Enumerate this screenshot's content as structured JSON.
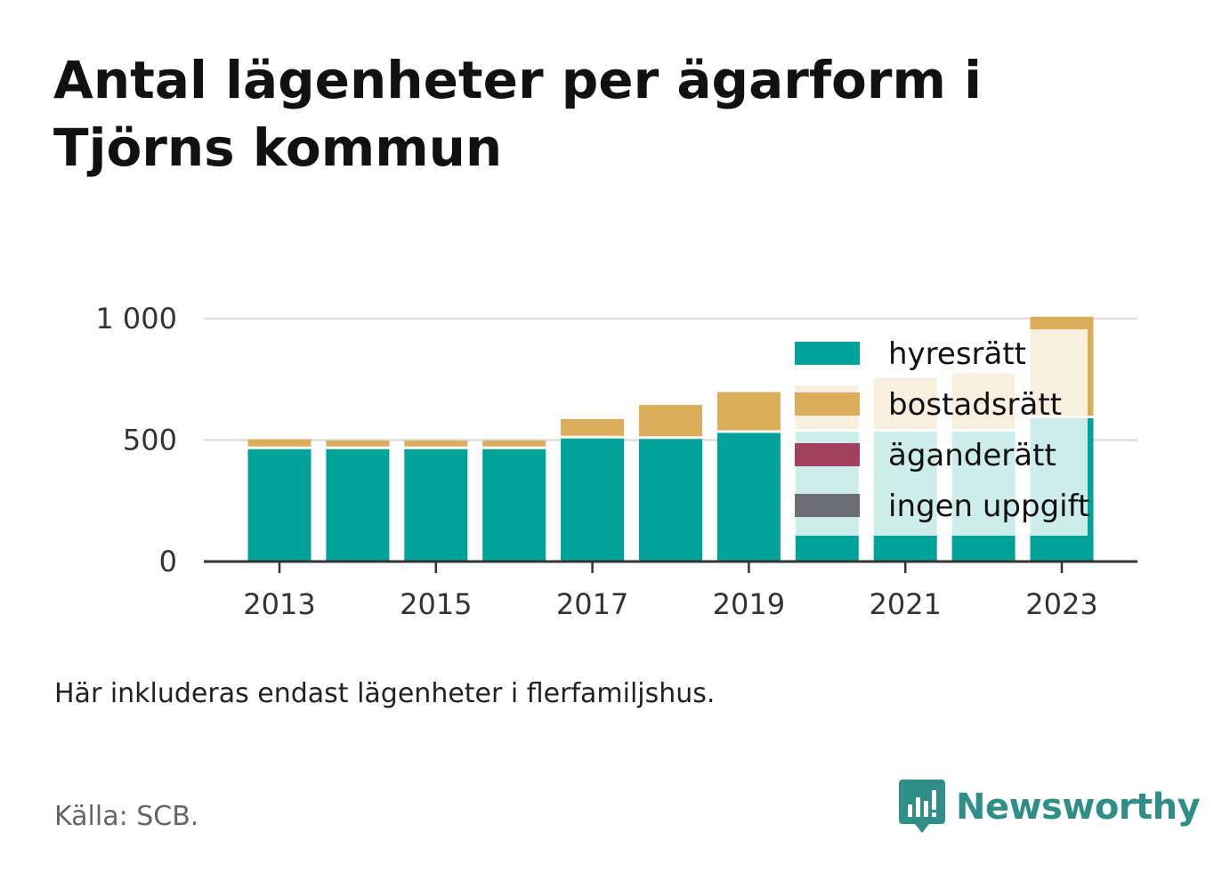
{
  "title": "Antal lägenheter per ägarform i Tjörns kommun",
  "note": "Här inkluderas endast lägenheter i flerfamiljshus.",
  "source": "Källa: SCB.",
  "brand": {
    "name": "Newsworthy",
    "icon": "newsworthy-logo-icon"
  },
  "colors": {
    "hyresratt": "#00a398",
    "bostadsratt": "#d9ad5a",
    "aganderatt": "#a3405e",
    "ingen_uppgift": "#6d6e73",
    "grid": "#dddddd",
    "axis": "#333333",
    "brand": "#2f8f87"
  },
  "chart_data": {
    "type": "bar",
    "stacked": true,
    "categories": [
      "2013",
      "2014",
      "2015",
      "2016",
      "2017",
      "2018",
      "2019",
      "2020",
      "2021",
      "2022",
      "2023"
    ],
    "x_tick_labels": [
      "2013",
      "2015",
      "2017",
      "2019",
      "2021",
      "2023"
    ],
    "y_ticks": [
      0,
      500,
      1000
    ],
    "y_tick_labels": [
      "0",
      "500",
      "1 000"
    ],
    "ylim": [
      0,
      1000
    ],
    "grid": true,
    "legend_position": "top-right",
    "series": [
      {
        "name": "hyresrätt",
        "color_key": "hyresratt",
        "values": [
          468,
          468,
          468,
          468,
          512,
          510,
          535,
          540,
          540,
          540,
          595
        ]
      },
      {
        "name": "bostadsrätt",
        "color_key": "bostadsratt",
        "values": [
          40,
          35,
          35,
          35,
          80,
          140,
          168,
          190,
          220,
          240,
          418
        ]
      },
      {
        "name": "äganderätt",
        "color_key": "aganderatt",
        "values": [
          0,
          0,
          0,
          0,
          0,
          0,
          0,
          0,
          0,
          0,
          0
        ]
      },
      {
        "name": "ingen uppgift",
        "color_key": "ingen_uppgift",
        "values": [
          0,
          0,
          0,
          0,
          0,
          0,
          0,
          0,
          0,
          0,
          0
        ]
      }
    ]
  }
}
